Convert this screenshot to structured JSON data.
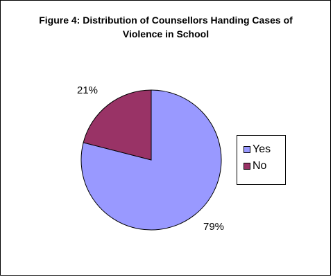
{
  "chart_data": {
    "type": "pie",
    "title": "Figure 4: Distribution of Counsellors Handing Cases of Violence in School",
    "categories": [
      "Yes",
      "No"
    ],
    "values": [
      79,
      21
    ],
    "data_labels": [
      "79%",
      "21%"
    ],
    "colors": [
      "#9999ff",
      "#993366"
    ],
    "legend": {
      "position": "right",
      "entries": [
        "Yes",
        "No"
      ]
    }
  }
}
